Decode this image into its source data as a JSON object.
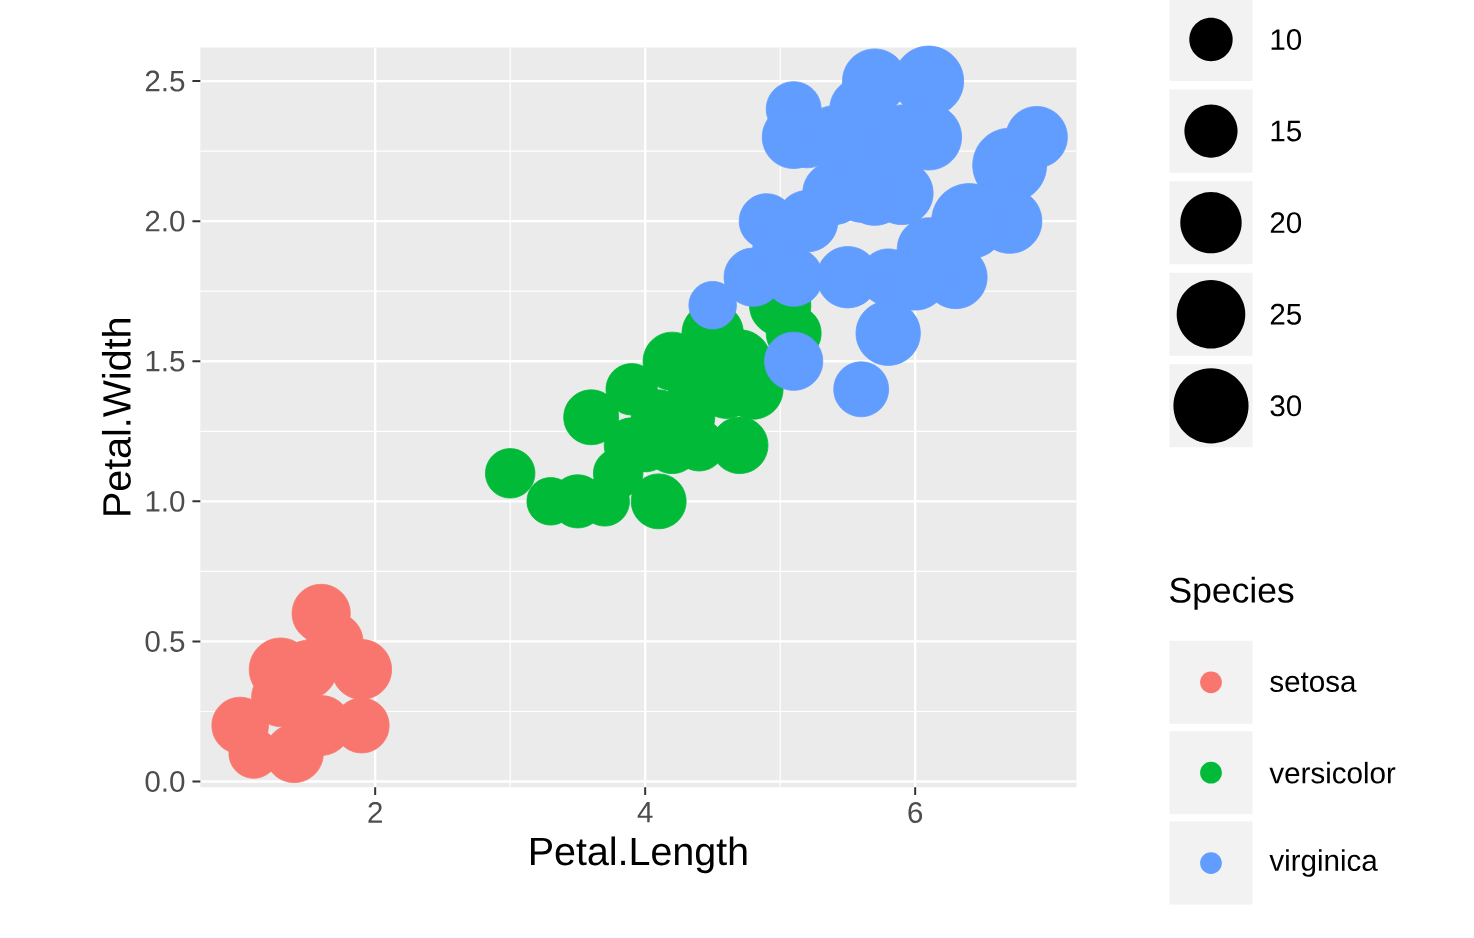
{
  "chart_data": {
    "type": "bubble",
    "xlabel": "Petal.Length",
    "ylabel": "Petal.Width",
    "legend_title": "Species",
    "xlim": [
      0.705,
      7.195
    ],
    "ylim": [
      -0.02,
      2.62
    ],
    "xticks": [
      2,
      4,
      6
    ],
    "yticks": [
      {
        "value": 0,
        "label": "0.0"
      },
      {
        "value": 0.5,
        "label": "0.5"
      },
      {
        "value": 1,
        "label": "1.0"
      },
      {
        "value": 1.5,
        "label": "1.5"
      },
      {
        "value": 2,
        "label": "2.0"
      },
      {
        "value": 2.5,
        "label": "2.5"
      }
    ],
    "grid": true,
    "legend": "right",
    "size_legend": [
      10,
      15,
      20,
      25,
      30
    ],
    "series": [
      {
        "name": "setosa",
        "color": "#f8766d",
        "x": [
          1.1,
          1.3,
          1.0,
          1.7,
          1.9,
          1.5,
          1.4,
          1.3,
          1.6,
          1.9,
          1.6
        ],
        "values": [
          0.1,
          0.4,
          0.2,
          0.5,
          0.2,
          0.4,
          0.1,
          0.3,
          0.6,
          0.4,
          0.2
        ],
        "sizes": [
          13,
          21,
          17,
          17,
          16,
          18,
          18,
          18,
          18,
          19,
          19
        ]
      },
      {
        "name": "versicolor",
        "color": "#00ba38",
        "x": [
          3.9,
          4.2,
          3.6,
          4.1,
          4.7,
          4.4,
          4.8,
          5.0,
          3.5,
          3.8,
          3.7,
          3.9,
          5.1,
          4.5,
          4.7,
          4.4,
          4.6,
          4.0,
          3.3,
          4.2,
          4.3,
          3.0,
          4.1
        ],
        "values": [
          1.4,
          1.5,
          1.3,
          1.0,
          1.2,
          1.4,
          1.4,
          1.7,
          1.0,
          1.1,
          1.0,
          1.2,
          1.6,
          1.6,
          1.5,
          1.2,
          1.4,
          1.2,
          1.0,
          1.2,
          1.3,
          1.1,
          1.3
        ],
        "sizes": [
          14,
          18,
          16,
          16,
          17,
          20,
          19,
          20,
          15,
          13,
          13,
          16,
          16,
          20,
          21,
          14,
          18,
          15,
          12,
          17,
          18,
          13,
          16
        ]
      },
      {
        "name": "virginica",
        "color": "#619cff",
        "x": [
          5.9,
          4.5,
          6.3,
          5.8,
          6.1,
          5.1,
          6.7,
          6.9,
          4.9,
          6.7,
          5.7,
          6.0,
          5.6,
          5.8,
          6.1,
          6.4,
          5.6,
          5.1,
          5.6,
          6.1,
          5.5,
          4.8,
          5.4,
          5.6,
          5.1,
          5.9,
          5.7,
          5.2,
          5.0,
          5.2,
          5.4,
          5.1
        ],
        "values": [
          2.1,
          1.7,
          1.8,
          1.8,
          2.5,
          2.4,
          2.2,
          2.3,
          2.0,
          2.0,
          2.1,
          1.8,
          2.1,
          1.6,
          1.9,
          2.0,
          2.2,
          1.5,
          1.4,
          2.3,
          1.8,
          1.8,
          2.1,
          2.4,
          2.3,
          2.3,
          2.5,
          2.3,
          1.9,
          2.0,
          2.3,
          1.8
        ],
        "sizes": [
          21,
          12,
          21,
          17,
          26,
          16,
          29,
          20,
          16,
          22,
          22,
          23,
          18,
          22,
          21,
          30,
          18,
          18,
          16,
          23,
          20,
          18,
          21,
          21,
          21,
          22,
          22,
          20,
          16,
          20,
          21,
          18
        ]
      }
    ]
  }
}
